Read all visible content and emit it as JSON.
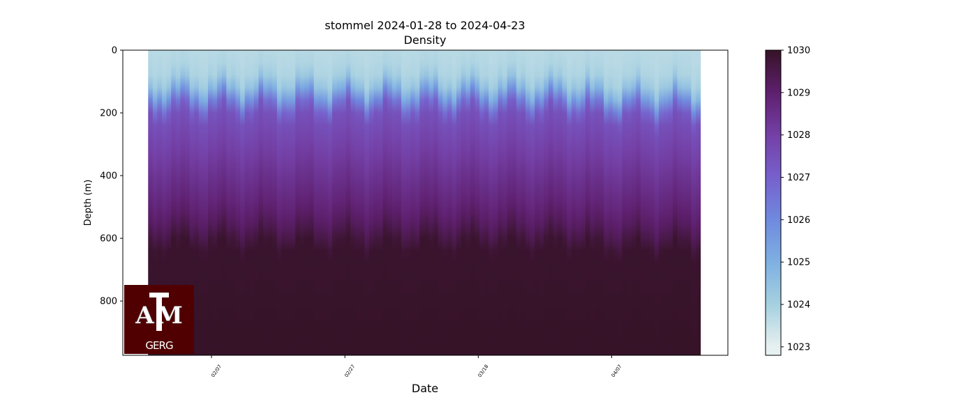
{
  "chart_data": {
    "type": "heatmap",
    "title": "stommel 2024-01-28 to 2024-04-23",
    "subtitle": "Density",
    "xlabel": "Date",
    "ylabel": "Depth (m)",
    "x_tick_labels": [
      "02/07",
      "02/27",
      "03/18",
      "04/07"
    ],
    "x_tick_dates": [
      "2024-02-07",
      "2024-02-27",
      "2024-03-18",
      "2024-04-07"
    ],
    "xlim": [
      "2024-01-24T17:00",
      "2024-04-24T10:00"
    ],
    "data_time_range": [
      "2024-01-28T12:00",
      "2024-04-20T07:00"
    ],
    "y_tick_labels": [
      "0",
      "200",
      "400",
      "600",
      "800"
    ],
    "y_ticks": [
      0,
      200,
      400,
      600,
      800
    ],
    "ylim": [
      973,
      0
    ],
    "y_inverted": true,
    "colormap": "dense",
    "colorbar": {
      "range": [
        1022.8,
        1030
      ],
      "tick_labels": [
        "1023",
        "1024",
        "1025",
        "1026",
        "1027",
        "1028",
        "1029",
        "1030"
      ],
      "ticks": [
        1023,
        1024,
        1025,
        1026,
        1027,
        1028,
        1029,
        1030
      ],
      "colors": [
        "#e6f0f0",
        "#a6d0e0",
        "#7eb0e2",
        "#6f8ade",
        "#7760cc",
        "#7440a6",
        "#5e1f6e",
        "#361327"
      ]
    },
    "mean_profile": {
      "depth": [
        0,
        80,
        120,
        160,
        200,
        300,
        400,
        500,
        560,
        620,
        973
      ],
      "density": [
        1023.7,
        1023.9,
        1024.6,
        1026.2,
        1027.4,
        1027.9,
        1028.4,
        1028.9,
        1029.3,
        1029.9,
        1030
      ]
    }
  },
  "logo": {
    "text": "ATM GERG"
  }
}
